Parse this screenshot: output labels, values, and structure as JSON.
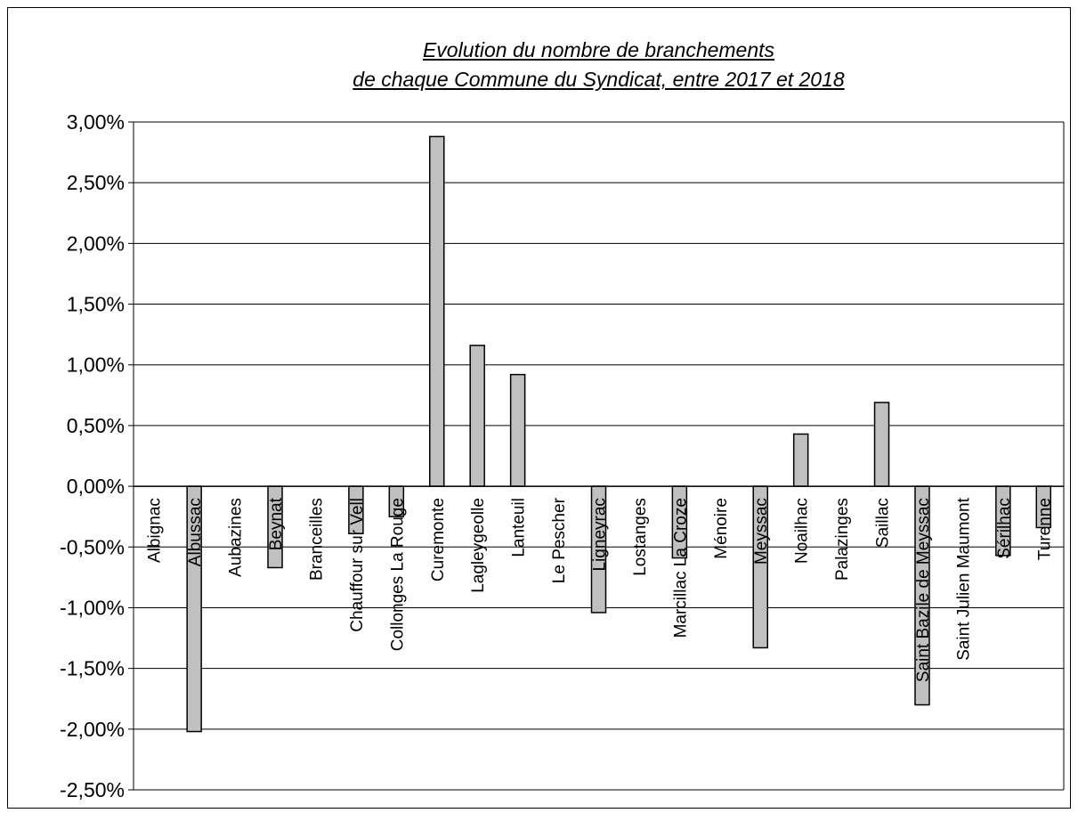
{
  "chart_data": {
    "type": "bar",
    "title_lines": [
      "Evolution du nombre de branchements",
      "de chaque Commune du Syndicat, entre 2017 et 2018"
    ],
    "xlabel": "",
    "ylabel": "",
    "ylim": [
      -0.025,
      0.03
    ],
    "y_ticks": [
      0.03,
      0.025,
      0.02,
      0.015,
      0.01,
      0.005,
      0.0,
      -0.005,
      -0.01,
      -0.015,
      -0.02,
      -0.025
    ],
    "y_tick_labels": [
      "3,00%",
      "2,50%",
      "2,00%",
      "1,50%",
      "1,00%",
      "0,50%",
      "0,00%",
      "-0,50%",
      "-1,00%",
      "-1,50%",
      "-2,00%",
      "-2,50%"
    ],
    "grid": true,
    "legend": "none",
    "bar_color": "#c0c0c0",
    "categories": [
      "Albignac",
      "Albussac",
      "Aubazines",
      "Beynat",
      "Branceilles",
      "Chauffour sur Vell",
      "Collonges La Rouge",
      "Curemonte",
      "Lagleygeolle",
      "Lanteuil",
      "Le Pescher",
      "Ligneyrac",
      "Lostanges",
      "Marcillac La Croze",
      "Ménoire",
      "Meyssac",
      "Noailhac",
      "Palazinges",
      "Saillac",
      "Saint Bazile de Meyssac",
      "Saint Julien Maumont",
      "Sérilhac",
      "Turenne"
    ],
    "values": [
      0.0,
      -0.0202,
      0.0,
      -0.0067,
      0.0,
      -0.0039,
      -0.0025,
      0.0288,
      0.0116,
      0.0092,
      0.0,
      -0.0104,
      0.0,
      -0.0059,
      0.0,
      -0.0133,
      0.0043,
      0.0,
      0.0069,
      -0.018,
      0.0,
      -0.0057,
      -0.0034
    ]
  }
}
